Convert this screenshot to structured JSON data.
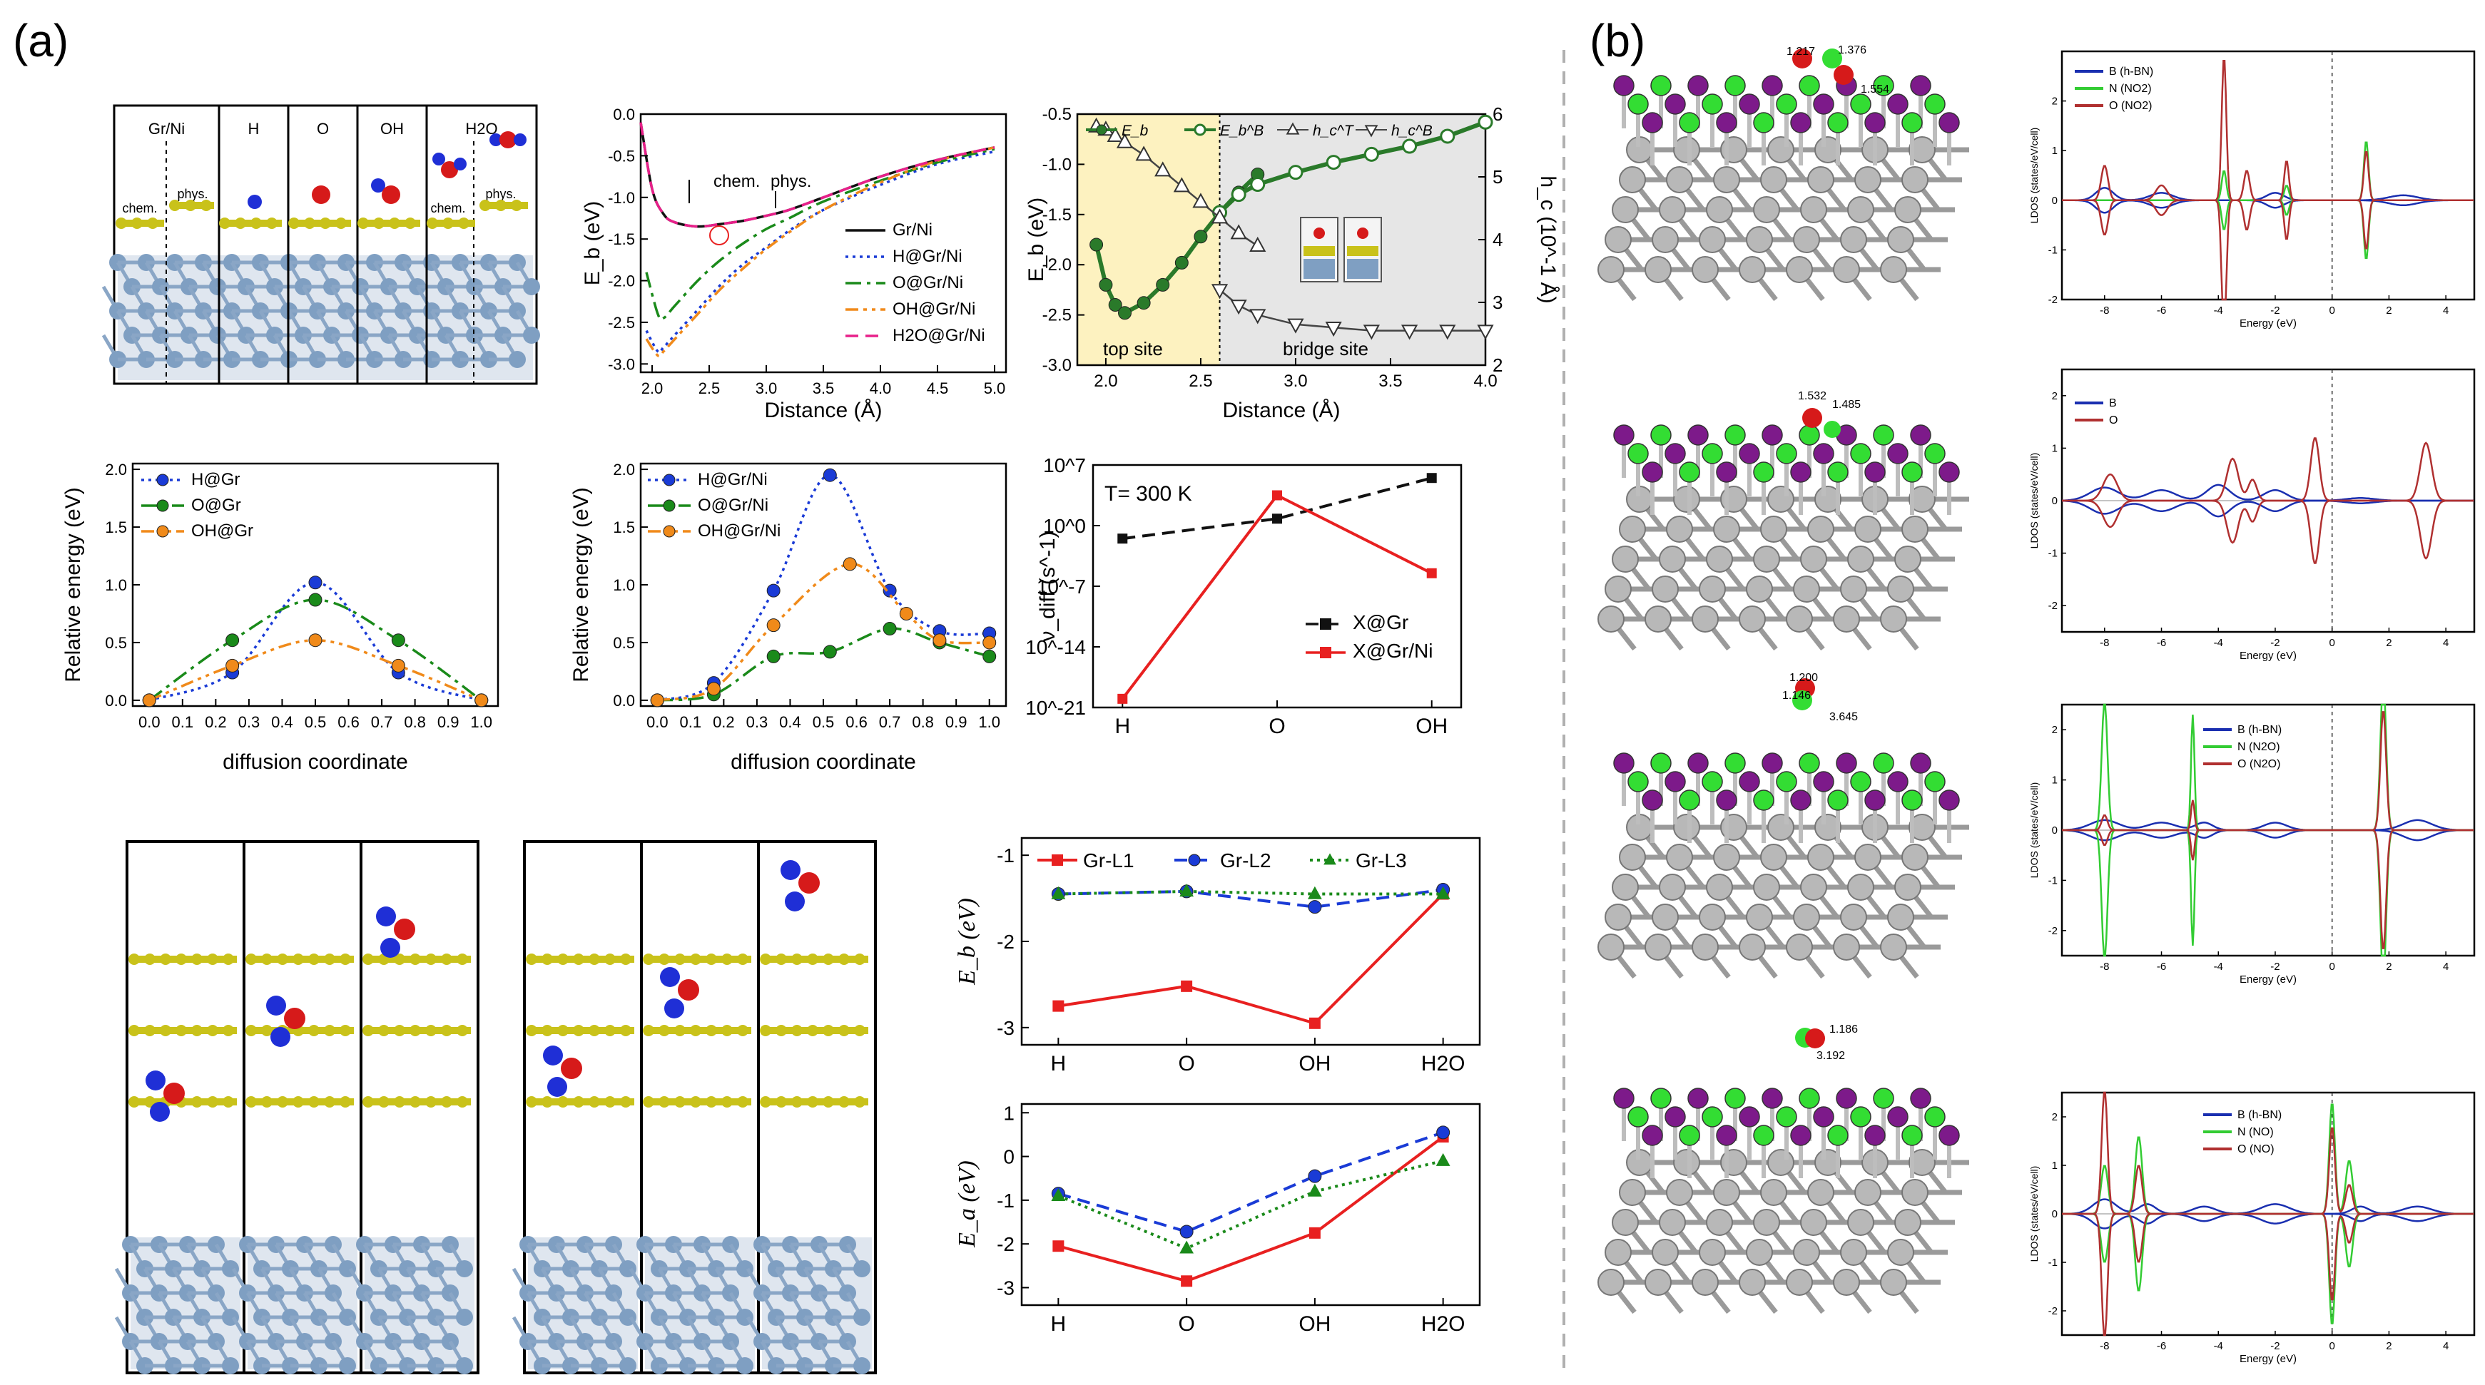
{
  "panel_labels": [
    "(a)",
    "(b)"
  ],
  "colors": {
    "graphene_c": "#c9c21a",
    "ni": "#7f9fc2",
    "h_atom": "#1f2fd6",
    "o_atom": "#d61a1a",
    "b_atom": "#7d1a8a",
    "n_atom": "#33dd33",
    "metal_b": "#b8b8b8",
    "top_site_bg": "#fdf2c0",
    "bridge_site_bg": "#e6e6e6",
    "black": "#000000",
    "blue": "#1a3bd6",
    "green": "#1a8a1a",
    "orange": "#f08a1a",
    "magenta": "#e8208a",
    "red": "#e82020",
    "darkgreen": "#2a7a2a"
  },
  "structures": {
    "top_left_labels": [
      "Gr/Ni",
      "H",
      "O",
      "OH",
      "H2O"
    ],
    "top_left_sub": [
      "chem.",
      "phys.",
      "chem.",
      "phys."
    ],
    "distance_labels": [
      "1.217",
      "1.376",
      "1.554",
      "1.532",
      "1.485",
      "1.200",
      "1.146",
      "3.645",
      "1.186",
      "3.192"
    ]
  },
  "chart_data": [
    {
      "id": "eb_vs_distance",
      "type": "line",
      "xlabel": "Distance (Å)",
      "ylabel": "E_b (eV)",
      "xlim": [
        1.9,
        5.1
      ],
      "ylim": [
        -3.1,
        0.0
      ],
      "xticks": [
        "2.0",
        "2.5",
        "3.0",
        "3.5",
        "4.0",
        "4.5",
        "5.0"
      ],
      "yticks": [
        "0.0",
        "-0.5",
        "-1.0",
        "-1.5",
        "-2.0",
        "-2.5",
        "-3.0"
      ],
      "annotations": [
        "chem.",
        "phys."
      ],
      "series": [
        {
          "name": "Gr/Ni",
          "x": [
            1.9,
            2.0,
            2.1,
            2.2,
            2.4,
            2.6,
            2.8,
            3.0,
            3.2,
            3.5,
            4.0,
            4.5,
            5.0
          ],
          "y": [
            -0.1,
            -0.9,
            -1.2,
            -1.3,
            -1.35,
            -1.32,
            -1.28,
            -1.22,
            -1.15,
            -1.0,
            -0.75,
            -0.55,
            -0.4
          ]
        },
        {
          "name": "H@Gr/Ni",
          "x": [
            1.95,
            2.05,
            2.1,
            2.2,
            2.4,
            2.6,
            2.8,
            3.0,
            3.2,
            3.5,
            4.0,
            4.5,
            5.0
          ],
          "y": [
            -2.6,
            -2.85,
            -2.8,
            -2.65,
            -2.35,
            -2.05,
            -1.8,
            -1.6,
            -1.4,
            -1.15,
            -0.85,
            -0.6,
            -0.45
          ]
        },
        {
          "name": "O@Gr/Ni",
          "x": [
            1.95,
            2.05,
            2.1,
            2.2,
            2.4,
            2.6,
            2.8,
            3.0,
            3.2,
            3.5,
            4.0,
            4.5,
            5.0
          ],
          "y": [
            -1.9,
            -2.4,
            -2.45,
            -2.3,
            -2.0,
            -1.75,
            -1.55,
            -1.38,
            -1.25,
            -1.05,
            -0.8,
            -0.58,
            -0.42
          ]
        },
        {
          "name": "OH@Gr/Ni",
          "x": [
            1.95,
            2.05,
            2.1,
            2.2,
            2.4,
            2.6,
            2.8,
            3.0,
            3.2,
            3.5,
            4.0,
            4.5,
            5.0
          ],
          "y": [
            -2.7,
            -2.9,
            -2.85,
            -2.7,
            -2.4,
            -2.1,
            -1.85,
            -1.62,
            -1.42,
            -1.15,
            -0.82,
            -0.56,
            -0.4
          ]
        },
        {
          "name": "H2O@Gr/Ni",
          "x": [
            1.9,
            2.0,
            2.1,
            2.2,
            2.4,
            2.6,
            2.8,
            3.0,
            3.2,
            3.5,
            4.0,
            4.5,
            5.0
          ],
          "y": [
            -0.1,
            -0.9,
            -1.2,
            -1.3,
            -1.35,
            -1.32,
            -1.28,
            -1.22,
            -1.15,
            -1.0,
            -0.75,
            -0.55,
            -0.4
          ]
        }
      ]
    },
    {
      "id": "site_eb_hc",
      "type": "line",
      "xlabel": "Distance (Å)",
      "ylabel": "E_b (eV)",
      "y2label": "h_c (10^-1 Å)",
      "xlim": [
        1.85,
        4.0
      ],
      "ylim": [
        -3.0,
        -0.5
      ],
      "y2lim": [
        2,
        6
      ],
      "xticks": [
        "2.0",
        "2.5",
        "3.0",
        "3.5",
        "4.0"
      ],
      "yticks": [
        "-0.5",
        "-1.0",
        "-1.5",
        "-2.0",
        "-2.5",
        "-3.0"
      ],
      "y2ticks": [
        "2",
        "3",
        "4",
        "5",
        "6"
      ],
      "regions": [
        "top site",
        "bridge site"
      ],
      "divider_x": 2.6,
      "series": [
        {
          "name": "E_b",
          "axis": "left",
          "x": [
            1.95,
            2.0,
            2.05,
            2.1,
            2.2,
            2.3,
            2.4,
            2.5,
            2.6,
            2.7,
            2.8
          ],
          "y": [
            -1.8,
            -2.2,
            -2.4,
            -2.48,
            -2.38,
            -2.2,
            -1.98,
            -1.72,
            -1.48,
            -1.28,
            -1.1
          ]
        },
        {
          "name": "E_b^B",
          "axis": "left",
          "x": [
            2.6,
            2.7,
            2.8,
            3.0,
            3.2,
            3.4,
            3.6,
            3.8,
            4.0
          ],
          "y": [
            -1.48,
            -1.3,
            -1.2,
            -1.08,
            -0.98,
            -0.9,
            -0.82,
            -0.72,
            -0.58
          ]
        },
        {
          "name": "h_c^T",
          "axis": "right",
          "x": [
            1.95,
            2.0,
            2.05,
            2.1,
            2.2,
            2.3,
            2.4,
            2.5,
            2.6,
            2.7,
            2.8
          ],
          "y": [
            5.8,
            5.75,
            5.65,
            5.55,
            5.35,
            5.1,
            4.85,
            4.6,
            4.35,
            4.1,
            3.9
          ]
        },
        {
          "name": "h_c^B",
          "axis": "right",
          "x": [
            2.6,
            2.7,
            2.8,
            3.0,
            3.2,
            3.4,
            3.6,
            3.8,
            4.0
          ],
          "y": [
            3.2,
            2.95,
            2.8,
            2.65,
            2.6,
            2.55,
            2.55,
            2.55,
            2.55
          ]
        }
      ]
    },
    {
      "id": "diffusion_gr",
      "type": "line",
      "xlabel": "diffusion coordinate",
      "ylabel": "Relative energy (eV)",
      "xlim": [
        -0.05,
        1.05
      ],
      "ylim": [
        -0.05,
        2.05
      ],
      "xticks": [
        "0.0",
        "0.1",
        "0.2",
        "0.3",
        "0.4",
        "0.5",
        "0.6",
        "0.7",
        "0.8",
        "0.9",
        "1.0"
      ],
      "yticks": [
        "0.0",
        "0.5",
        "1.0",
        "1.5",
        "2.0"
      ],
      "series": [
        {
          "name": "H@Gr",
          "x": [
            0.0,
            0.25,
            0.5,
            0.75,
            1.0
          ],
          "y": [
            0.0,
            0.24,
            1.02,
            0.24,
            0.0
          ]
        },
        {
          "name": "O@Gr",
          "x": [
            0.0,
            0.25,
            0.5,
            0.75,
            1.0
          ],
          "y": [
            0.0,
            0.52,
            0.87,
            0.52,
            0.0
          ]
        },
        {
          "name": "OH@Gr",
          "x": [
            0.0,
            0.25,
            0.5,
            0.75,
            1.0
          ],
          "y": [
            0.0,
            0.3,
            0.52,
            0.3,
            0.0
          ]
        }
      ]
    },
    {
      "id": "diffusion_grni",
      "type": "line",
      "xlabel": "diffusion coordinate",
      "ylabel": "Relative energy (eV)",
      "xlim": [
        -0.05,
        1.05
      ],
      "ylim": [
        -0.05,
        2.05
      ],
      "xticks": [
        "0.0",
        "0.1",
        "0.2",
        "0.3",
        "0.4",
        "0.5",
        "0.6",
        "0.7",
        "0.8",
        "0.9",
        "1.0"
      ],
      "yticks": [
        "0.0",
        "0.5",
        "1.0",
        "1.5",
        "2.0"
      ],
      "series": [
        {
          "name": "H@Gr/Ni",
          "x": [
            0.0,
            0.17,
            0.35,
            0.52,
            0.7,
            0.85,
            1.0
          ],
          "y": [
            0.0,
            0.15,
            0.95,
            1.95,
            0.95,
            0.6,
            0.58
          ]
        },
        {
          "name": "O@Gr/Ni",
          "x": [
            0.0,
            0.17,
            0.35,
            0.52,
            0.7,
            0.85,
            1.0
          ],
          "y": [
            0.0,
            0.05,
            0.38,
            0.42,
            0.62,
            0.5,
            0.38
          ]
        },
        {
          "name": "OH@Gr/Ni",
          "x": [
            0.0,
            0.17,
            0.35,
            0.58,
            0.75,
            0.85,
            1.0
          ],
          "y": [
            0.0,
            0.1,
            0.65,
            1.18,
            0.75,
            0.52,
            0.5
          ]
        }
      ]
    },
    {
      "id": "diffusion_rate",
      "type": "line",
      "ylabel": "ν_diff (s^-1)",
      "annotation": "T= 300 K",
      "categories": [
        "H",
        "O",
        "OH"
      ],
      "ylog": true,
      "ylim_exp": [
        -21,
        7
      ],
      "yticks": [
        "10^7",
        "10^0",
        "10^-7",
        "10^-14",
        "10^-21"
      ],
      "series": [
        {
          "name": "X@Gr",
          "values": [
            -1.5,
            0.8,
            5.5
          ]
        },
        {
          "name": "X@Gr/Ni",
          "values": [
            -20.0,
            3.5,
            -5.5
          ]
        }
      ]
    },
    {
      "id": "eb_layers",
      "type": "line",
      "ylabel": "E_b (eV)",
      "categories": [
        "H",
        "O",
        "OH",
        "H2O"
      ],
      "ylim": [
        -3.2,
        -0.8
      ],
      "yticks": [
        "-1",
        "-2",
        "-3"
      ],
      "series": [
        {
          "name": "Gr-L1",
          "values": [
            -2.75,
            -2.52,
            -2.95,
            -1.45
          ]
        },
        {
          "name": "Gr-L2",
          "values": [
            -1.45,
            -1.42,
            -1.6,
            -1.4
          ]
        },
        {
          "name": "Gr-L3",
          "values": [
            -1.45,
            -1.42,
            -1.45,
            -1.45
          ]
        }
      ]
    },
    {
      "id": "ea_layers",
      "type": "line",
      "ylabel": "E_a (eV)",
      "categories": [
        "H",
        "O",
        "OH",
        "H2O"
      ],
      "ylim": [
        -3.4,
        1.2
      ],
      "yticks": [
        "1",
        "0",
        "-1",
        "-2",
        "-3"
      ],
      "series": [
        {
          "name": "Gr-L1",
          "values": [
            -2.05,
            -2.85,
            -1.75,
            0.45
          ]
        },
        {
          "name": "Gr-L2",
          "values": [
            -0.85,
            -1.72,
            -0.45,
            0.55
          ]
        },
        {
          "name": "Gr-L3",
          "values": [
            -0.9,
            -2.1,
            -0.8,
            -0.1
          ]
        }
      ]
    },
    {
      "id": "ldos_no2",
      "type": "line",
      "xlabel": "Energy (eV)",
      "ylabel": "LDOS (states/eV/cell)",
      "xlim": [
        -9.5,
        5.0
      ],
      "ylim": [
        -2.0,
        3.0
      ],
      "xticks": [
        "-8",
        "-6",
        "-4",
        "-2",
        "0",
        "2",
        "4"
      ],
      "yticks": [
        "2",
        "1",
        "0",
        "-1",
        "-2"
      ],
      "series": [
        {
          "name": "B (h-BN)"
        },
        {
          "name": "N (NO2)"
        },
        {
          "name": "O (NO2)"
        }
      ]
    },
    {
      "id": "ldos_bo",
      "type": "line",
      "xlabel": "Energy (eV)",
      "ylabel": "LDOS (states/eV/cell)",
      "xlim": [
        -9.5,
        5.0
      ],
      "ylim": [
        -2.5,
        2.5
      ],
      "xticks": [
        "-8",
        "-6",
        "-4",
        "-2",
        "0",
        "2",
        "4"
      ],
      "yticks": [
        "2",
        "1",
        "0",
        "-1",
        "-2"
      ],
      "series": [
        {
          "name": "B"
        },
        {
          "name": "O"
        }
      ]
    },
    {
      "id": "ldos_n2o",
      "type": "line",
      "xlabel": "Energy (eV)",
      "ylabel": "LDOS (states/eV/cell)",
      "xlim": [
        -9.5,
        5.0
      ],
      "ylim": [
        -2.5,
        2.5
      ],
      "xticks": [
        "-8",
        "-6",
        "-4",
        "-2",
        "0",
        "2",
        "4"
      ],
      "yticks": [
        "2",
        "1",
        "0",
        "-1",
        "-2"
      ],
      "series": [
        {
          "name": "B (h-BN)"
        },
        {
          "name": "N (N2O)"
        },
        {
          "name": "O (N2O)"
        }
      ]
    },
    {
      "id": "ldos_no",
      "type": "line",
      "xlabel": "Energy (eV)",
      "ylabel": "LDOS (states/eV/cell)",
      "xlim": [
        -9.5,
        5.0
      ],
      "ylim": [
        -2.5,
        2.5
      ],
      "xticks": [
        "-8",
        "-6",
        "-4",
        "-2",
        "0",
        "2",
        "4"
      ],
      "yticks": [
        "2",
        "1",
        "0",
        "-1",
        "-2"
      ],
      "series": [
        {
          "name": "B (h-BN)"
        },
        {
          "name": "N (NO)"
        },
        {
          "name": "O (NO)"
        }
      ]
    }
  ]
}
